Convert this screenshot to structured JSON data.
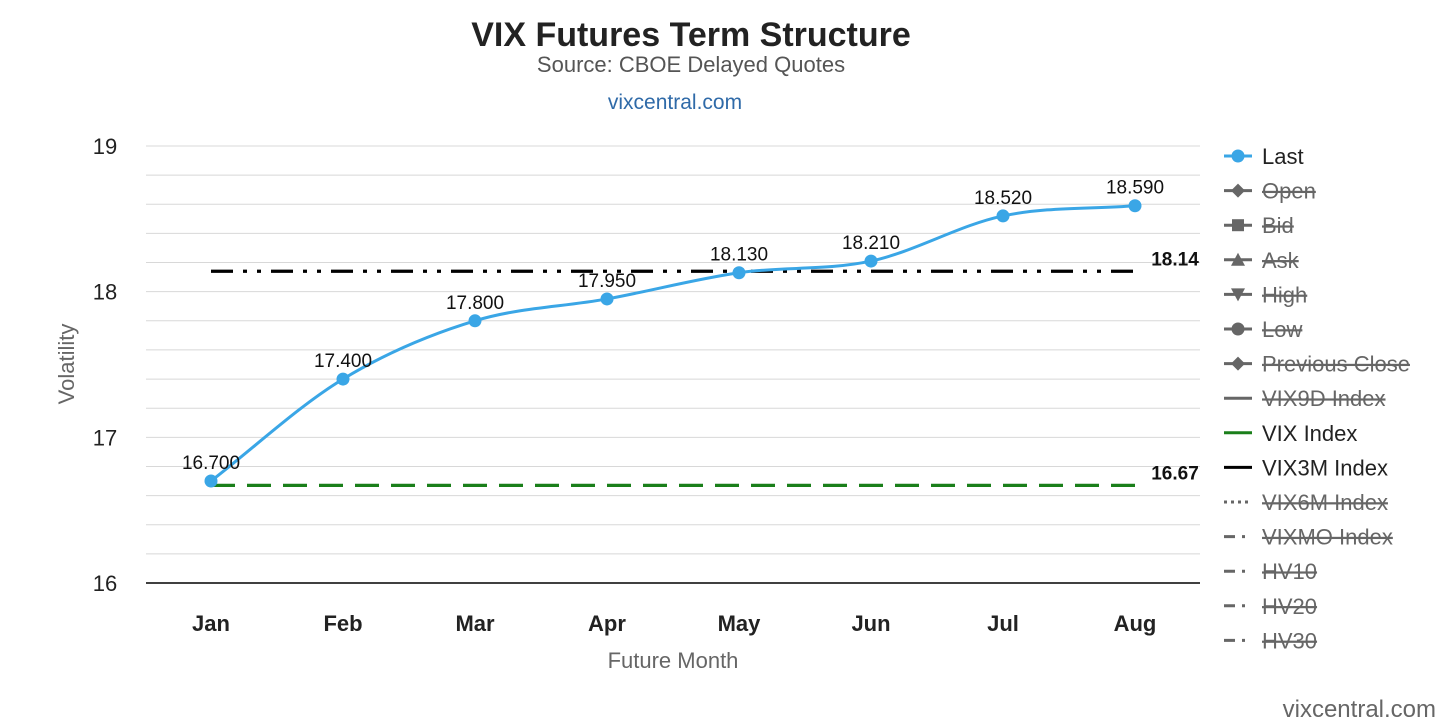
{
  "chart": {
    "title": "VIX Futures Term Structure",
    "subtitle": "Source: CBOE Delayed Quotes",
    "link_text": "vixcentral.com",
    "credit": "vixcentral.com",
    "colors": {
      "last": "#3aa6e6",
      "vix_index": "#1a7f1a",
      "vix3m_index": "#000000",
      "grid": "#d8d8d8",
      "axis": "#000000",
      "link": "#2f6aa8",
      "legend_hidden": "#666666"
    }
  },
  "chart_data": {
    "type": "line",
    "xlabel": "Future Month",
    "ylabel": "Volatility",
    "ylim": [
      16,
      19
    ],
    "yticks": [
      16,
      17,
      18,
      19
    ],
    "y_minor_step": 0.2,
    "grid": true,
    "legend_position": "right",
    "categories": [
      "Jan",
      "Feb",
      "Mar",
      "Apr",
      "May",
      "Jun",
      "Jul",
      "Aug"
    ],
    "series": [
      {
        "name": "Last",
        "values": [
          16.7,
          17.4,
          17.8,
          17.95,
          18.13,
          18.21,
          18.52,
          18.59
        ],
        "labels": [
          "16.700",
          "17.400",
          "17.800",
          "17.950",
          "18.130",
          "18.210",
          "18.520",
          "18.590"
        ],
        "color": "#3aa6e6",
        "smooth": true,
        "markers": true
      }
    ],
    "reference_lines": [
      {
        "name": "VIX3M Index",
        "value": 18.14,
        "label": "18.14",
        "color": "#000000",
        "dash": "dash-dot-dot"
      },
      {
        "name": "VIX Index",
        "value": 16.67,
        "label": "16.67",
        "color": "#1a7f1a",
        "dash": "dash"
      }
    ],
    "legend": [
      {
        "name": "Last",
        "symbol": "line-circle",
        "visible": true
      },
      {
        "name": "Open",
        "symbol": "line-diamond",
        "visible": false
      },
      {
        "name": "Bid",
        "symbol": "line-square",
        "visible": false
      },
      {
        "name": "Ask",
        "symbol": "line-triangle-up",
        "visible": false
      },
      {
        "name": "High",
        "symbol": "line-triangle-down",
        "visible": false
      },
      {
        "name": "Low",
        "symbol": "line-circle",
        "visible": false
      },
      {
        "name": "Previous Close",
        "symbol": "line-diamond",
        "visible": false
      },
      {
        "name": "VIX9D Index",
        "symbol": "line",
        "visible": false
      },
      {
        "name": "VIX Index",
        "symbol": "line",
        "visible": true
      },
      {
        "name": "VIX3M Index",
        "symbol": "line",
        "visible": true
      },
      {
        "name": "VIX6M Index",
        "symbol": "dotted",
        "visible": false
      },
      {
        "name": "VIXMO Index",
        "symbol": "dash-dot",
        "visible": false
      },
      {
        "name": "HV10",
        "symbol": "dash-dot",
        "visible": false
      },
      {
        "name": "HV20",
        "symbol": "dash-dot",
        "visible": false
      },
      {
        "name": "HV30",
        "symbol": "dash-dot",
        "visible": false
      }
    ]
  }
}
